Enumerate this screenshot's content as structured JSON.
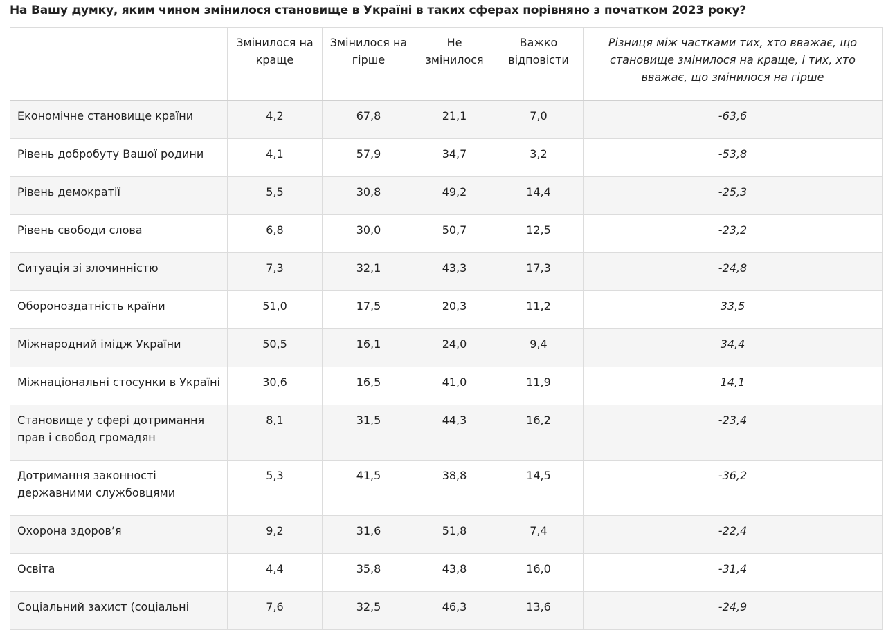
{
  "title": "На Вашу думку, яким чином змінилося становище в Україні в таких сферах порівняно з початком 2023 року?",
  "table": {
    "header": [
      "Змінилося на краще",
      "Змінилося на гірше",
      "Не змінилося",
      "Важко відповісти",
      "Різниця між частками тих, хто вважає, що становище змінилося на краще, і тих, хто вважає, що змінилося на гірше"
    ],
    "rows": [
      [
        "Економічне становище країни",
        "4,2",
        "67,8",
        "21,1",
        "7,0",
        "-63,6"
      ],
      [
        "Рівень добробуту Вашої родини",
        "4,1",
        "57,9",
        "34,7",
        "3,2",
        "-53,8"
      ],
      [
        "Рівень демократії",
        "5,5",
        "30,8",
        "49,2",
        "14,4",
        "-25,3"
      ],
      [
        "Рівень свободи слова",
        "6,8",
        "30,0",
        "50,7",
        "12,5",
        "-23,2"
      ],
      [
        "Ситуація зі злочинністю",
        "7,3",
        "32,1",
        "43,3",
        "17,3",
        "-24,8"
      ],
      [
        "Обороноздатність країни",
        "51,0",
        "17,5",
        "20,3",
        "11,2",
        "33,5"
      ],
      [
        "Міжнародний імідж України",
        "50,5",
        "16,1",
        "24,0",
        "9,4",
        "34,4"
      ],
      [
        "Міжнаціональні стосунки в Україні",
        "30,6",
        "16,5",
        "41,0",
        "11,9",
        "14,1"
      ],
      [
        "Становище у сфері дотримання прав і свобод громадян",
        "8,1",
        "31,5",
        "44,3",
        "16,2",
        "-23,4"
      ],
      [
        "Дотримання законності державними службовцями",
        "5,3",
        "41,5",
        "38,8",
        "14,5",
        "-36,2"
      ],
      [
        "Охорона здоров’я",
        "9,2",
        "31,6",
        "51,8",
        "7,4",
        "-22,4"
      ],
      [
        "Освіта",
        "4,4",
        "35,8",
        "43,8",
        "16,0",
        "-31,4"
      ],
      [
        "Соціальний захист (соціальні",
        "7,6",
        "32,5",
        "46,3",
        "13,6",
        "-24,9"
      ]
    ]
  }
}
